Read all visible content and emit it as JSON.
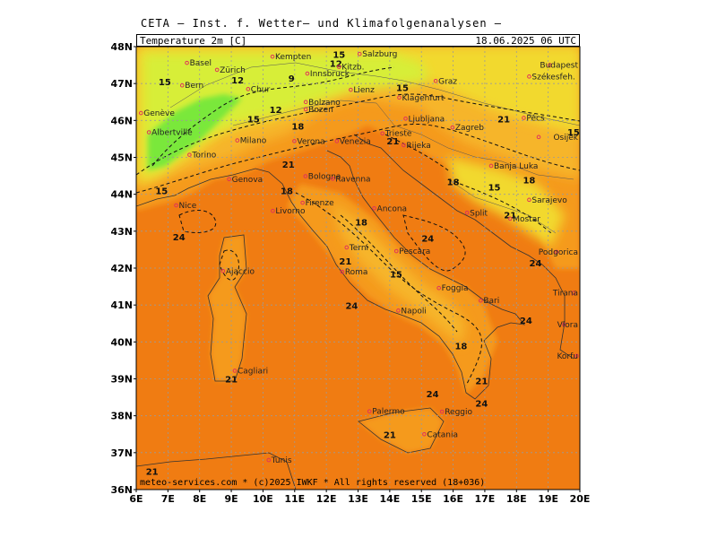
{
  "header": {
    "institute": "CETA — Inst. f. Wetter— und Klimafolgenanalysen —",
    "variable": "Temperature 2m [C]",
    "datetime": "18.06.2025 06 UTC"
  },
  "footer": "meteo-services.com * (c)2025 IWKF * All rights reserved (18+036)",
  "axes": {
    "latitudes": [
      "48N",
      "47N",
      "46N",
      "45N",
      "44N",
      "43N",
      "42N",
      "41N",
      "40N",
      "39N",
      "38N",
      "37N",
      "36N"
    ],
    "longitudes": [
      "6E",
      "7E",
      "8E",
      "9E",
      "10E",
      "11E",
      "12E",
      "13E",
      "14E",
      "15E",
      "16E",
      "17E",
      "18E",
      "19E",
      "20E"
    ]
  },
  "colors": {
    "sea_hot": "#f07c12",
    "land_warm": "#f59a1c",
    "land_mild": "#f6b52a",
    "land_cool": "#f2d92e",
    "land_cold": "#d7ee39",
    "alps_coldest": "#7ae83a"
  },
  "cities": [
    {
      "name": "Basel",
      "lon": 7.6,
      "lat": 47.56
    },
    {
      "name": "Zürich",
      "lon": 8.55,
      "lat": 47.37
    },
    {
      "name": "Bern",
      "lon": 7.45,
      "lat": 46.95
    },
    {
      "name": "Genève",
      "lon": 6.15,
      "lat": 46.2
    },
    {
      "name": "Albertville",
      "lon": 6.4,
      "lat": 45.68
    },
    {
      "name": "Chur",
      "lon": 9.53,
      "lat": 46.85
    },
    {
      "name": "Kempten",
      "lon": 10.3,
      "lat": 47.73
    },
    {
      "name": "Innsbruck",
      "lon": 11.4,
      "lat": 47.27
    },
    {
      "name": "Salzburg",
      "lon": 13.05,
      "lat": 47.8
    },
    {
      "name": "Kitzb.",
      "lon": 12.4,
      "lat": 47.45
    },
    {
      "name": "Bolzano",
      "lon": 11.35,
      "lat": 46.5
    },
    {
      "name": "Lienz",
      "lon": 12.77,
      "lat": 46.83
    },
    {
      "name": "Bozen",
      "lon": 11.35,
      "lat": 46.3
    },
    {
      "name": "Graz",
      "lon": 15.45,
      "lat": 47.07
    },
    {
      "name": "Klagenfurt",
      "lon": 14.3,
      "lat": 46.62
    },
    {
      "name": "Ljubljana",
      "lon": 14.5,
      "lat": 46.05
    },
    {
      "name": "Zagreb",
      "lon": 15.98,
      "lat": 45.81
    },
    {
      "name": "Trieste",
      "lon": 13.77,
      "lat": 45.65
    },
    {
      "name": "Rijeka",
      "lon": 14.44,
      "lat": 45.33
    },
    {
      "name": "Budapest",
      "lon": 19.05,
      "lat": 47.5
    },
    {
      "name": "Székesfeh.",
      "lon": 18.4,
      "lat": 47.19
    },
    {
      "name": "Pécs",
      "lon": 18.23,
      "lat": 46.07
    },
    {
      "name": "Osijek",
      "lon": 18.7,
      "lat": 45.55
    },
    {
      "name": "Banja Luka",
      "lon": 17.2,
      "lat": 44.77
    },
    {
      "name": "Sarajevo",
      "lon": 18.4,
      "lat": 43.85
    },
    {
      "name": "Mostar",
      "lon": 17.8,
      "lat": 43.34
    },
    {
      "name": "Split",
      "lon": 16.44,
      "lat": 43.5
    },
    {
      "name": "Podgorica",
      "lon": 19.26,
      "lat": 42.44
    },
    {
      "name": "Tirana",
      "lon": 19.8,
      "lat": 41.33
    },
    {
      "name": "Vlora",
      "lon": 19.5,
      "lat": 40.47
    },
    {
      "name": "Korfu",
      "lon": 19.9,
      "lat": 39.62
    },
    {
      "name": "Milano",
      "lon": 9.19,
      "lat": 45.46
    },
    {
      "name": "Torino",
      "lon": 7.68,
      "lat": 45.07
    },
    {
      "name": "Verona",
      "lon": 10.99,
      "lat": 45.44
    },
    {
      "name": "Venezia",
      "lon": 12.33,
      "lat": 45.44
    },
    {
      "name": "Genova",
      "lon": 8.93,
      "lat": 44.41
    },
    {
      "name": "Bologna",
      "lon": 11.34,
      "lat": 44.49
    },
    {
      "name": "Ravenna",
      "lon": 12.2,
      "lat": 44.42
    },
    {
      "name": "Nice",
      "lon": 7.26,
      "lat": 43.7
    },
    {
      "name": "Firenze",
      "lon": 11.25,
      "lat": 43.77
    },
    {
      "name": "Livorno",
      "lon": 10.31,
      "lat": 43.55
    },
    {
      "name": "Ancona",
      "lon": 13.51,
      "lat": 43.62
    },
    {
      "name": "Terni",
      "lon": 12.64,
      "lat": 42.56
    },
    {
      "name": "Pescara",
      "lon": 14.21,
      "lat": 42.46
    },
    {
      "name": "Ajaccio",
      "lon": 8.74,
      "lat": 41.92
    },
    {
      "name": "Roma",
      "lon": 12.5,
      "lat": 41.9
    },
    {
      "name": "Foggia",
      "lon": 15.55,
      "lat": 41.46
    },
    {
      "name": "Bari",
      "lon": 16.87,
      "lat": 41.12
    },
    {
      "name": "Napoli",
      "lon": 14.27,
      "lat": 40.85
    },
    {
      "name": "Cagliari",
      "lon": 9.11,
      "lat": 39.22
    },
    {
      "name": "Reggio",
      "lon": 15.65,
      "lat": 38.11
    },
    {
      "name": "Palermo",
      "lon": 13.36,
      "lat": 38.12
    },
    {
      "name": "Catania",
      "lon": 15.09,
      "lat": 37.5
    },
    {
      "name": "Tunis",
      "lon": 10.18,
      "lat": 36.8
    }
  ],
  "isotherm_labels": [
    {
      "text": "15",
      "lon": 6.9,
      "lat": 46.95
    },
    {
      "text": "12",
      "lon": 9.2,
      "lat": 47.0
    },
    {
      "text": "9",
      "lon": 10.9,
      "lat": 47.05
    },
    {
      "text": "12",
      "lon": 12.3,
      "lat": 47.45
    },
    {
      "text": "15",
      "lon": 12.4,
      "lat": 47.7
    },
    {
      "text": "12",
      "lon": 10.4,
      "lat": 46.2
    },
    {
      "text": "15",
      "lon": 9.7,
      "lat": 45.95
    },
    {
      "text": "18",
      "lon": 11.1,
      "lat": 45.75
    },
    {
      "text": "15",
      "lon": 14.4,
      "lat": 46.8
    },
    {
      "text": "21",
      "lon": 14.1,
      "lat": 45.35
    },
    {
      "text": "21",
      "lon": 17.6,
      "lat": 45.95
    },
    {
      "text": "18",
      "lon": 16.0,
      "lat": 44.25
    },
    {
      "text": "15",
      "lon": 17.3,
      "lat": 44.1
    },
    {
      "text": "18",
      "lon": 18.4,
      "lat": 44.3
    },
    {
      "text": "15",
      "lon": 19.8,
      "lat": 45.6
    },
    {
      "text": "21",
      "lon": 17.8,
      "lat": 43.35
    },
    {
      "text": "21",
      "lon": 10.8,
      "lat": 44.72
    },
    {
      "text": "18",
      "lon": 10.75,
      "lat": 44.0
    },
    {
      "text": "15",
      "lon": 6.8,
      "lat": 44.0
    },
    {
      "text": "24",
      "lon": 7.35,
      "lat": 42.75
    },
    {
      "text": "18",
      "lon": 13.1,
      "lat": 43.15
    },
    {
      "text": "24",
      "lon": 15.2,
      "lat": 42.72
    },
    {
      "text": "21",
      "lon": 12.6,
      "lat": 42.1
    },
    {
      "text": "15",
      "lon": 14.2,
      "lat": 41.75
    },
    {
      "text": "24",
      "lon": 18.6,
      "lat": 42.05
    },
    {
      "text": "24",
      "lon": 12.8,
      "lat": 40.9
    },
    {
      "text": "24",
      "lon": 18.3,
      "lat": 40.5
    },
    {
      "text": "18",
      "lon": 16.25,
      "lat": 39.8
    },
    {
      "text": "21",
      "lon": 16.9,
      "lat": 38.85
    },
    {
      "text": "24",
      "lon": 15.35,
      "lat": 38.5
    },
    {
      "text": "24",
      "lon": 16.9,
      "lat": 38.25
    },
    {
      "text": "21",
      "lon": 9.0,
      "lat": 38.9
    },
    {
      "text": "21",
      "lon": 14.0,
      "lat": 37.4
    },
    {
      "text": "21",
      "lon": 6.5,
      "lat": 36.4
    }
  ]
}
